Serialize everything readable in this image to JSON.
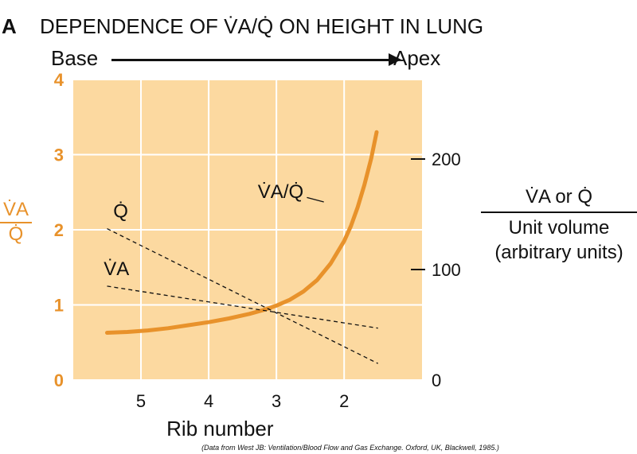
{
  "panel_letter": "A",
  "title_text": "DEPENDENCE OF V̇A/Q̇ ON HEIGHT IN LUNG",
  "direction": {
    "from": "Base",
    "to": "Apex"
  },
  "left_axis_label": {
    "numerator": "V̇A",
    "denominator": "Q̇"
  },
  "right_axis_label": {
    "numerator": "V̇A or Q̇",
    "line2": "Unit volume",
    "line3": "(arbitrary units)"
  },
  "source_note": "(Data from West JB: Ventilation/Blood Flow and Gas Exchange. Oxford, UK, Blackwell, 1985.)",
  "colors": {
    "plot_background": "#fcd9a0",
    "curve": "#e8922b",
    "left_axis": "#e8922b",
    "grid": "#ffffff",
    "ink": "#111111"
  },
  "chart_data": {
    "type": "line",
    "title": "DEPENDENCE OF V̇A/Q̇ ON HEIGHT IN LUNG",
    "xlabel": "Rib number",
    "x_ticks": [
      5,
      4,
      3,
      2
    ],
    "xlim": [
      6.0,
      0.85
    ],
    "ylabel_left": "V̇A/Q̇",
    "ylim_left": [
      0,
      4
    ],
    "y_ticks_left": [
      0,
      1,
      2,
      3,
      4
    ],
    "ylabel_right": "V̇A or Q̇ / Unit volume (arbitrary units)",
    "ylim_right": [
      0,
      272
    ],
    "y_ticks_right": [
      0,
      100,
      200
    ],
    "grid": true,
    "series": [
      {
        "name": "V̇A/Q̇",
        "axis": "left",
        "style": "solid",
        "x": [
          5.5,
          5.2,
          4.9,
          4.6,
          4.3,
          4.0,
          3.7,
          3.4,
          3.2,
          3.0,
          2.8,
          2.6,
          2.4,
          2.2,
          2.0,
          1.9,
          1.8,
          1.7,
          1.6,
          1.52
        ],
        "y": [
          0.63,
          0.64,
          0.66,
          0.69,
          0.73,
          0.77,
          0.82,
          0.88,
          0.93,
          0.99,
          1.07,
          1.18,
          1.33,
          1.55,
          1.85,
          2.05,
          2.3,
          2.6,
          2.95,
          3.3
        ]
      },
      {
        "name": "Q̇",
        "axis": "right",
        "style": "dashed",
        "x": [
          5.5,
          1.5
        ],
        "y": [
          137,
          15
        ]
      },
      {
        "name": "V̇A",
        "axis": "right",
        "style": "dashed",
        "x": [
          5.5,
          1.5
        ],
        "y": [
          85,
          47
        ]
      }
    ],
    "annotations": [
      {
        "text": "V̇A/Q̇",
        "target": "V̇A/Q̇"
      },
      {
        "text": "Q̇",
        "target": "Q̇"
      },
      {
        "text": "V̇A",
        "target": "V̇A"
      }
    ]
  }
}
